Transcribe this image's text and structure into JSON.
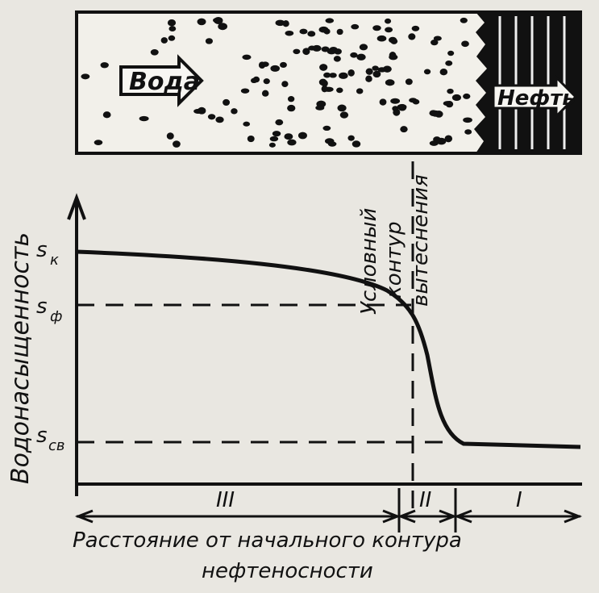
{
  "top_panel": {
    "water_label": "Вода",
    "oil_label": "Нефть"
  },
  "graph": {
    "y_axis_label": "Водонасыщенность",
    "levels": [
      {
        "symbol": "s",
        "subscript": "к"
      },
      {
        "symbol": "s",
        "subscript": "ф"
      },
      {
        "symbol": "s",
        "subscript": "св"
      }
    ],
    "front_label": [
      "Условный",
      "контур",
      "вытеснения"
    ],
    "zones": [
      "III",
      "II",
      "I"
    ],
    "x_axis_label": [
      "Расстояние от начального контура",
      "нефтеносности"
    ]
  }
}
